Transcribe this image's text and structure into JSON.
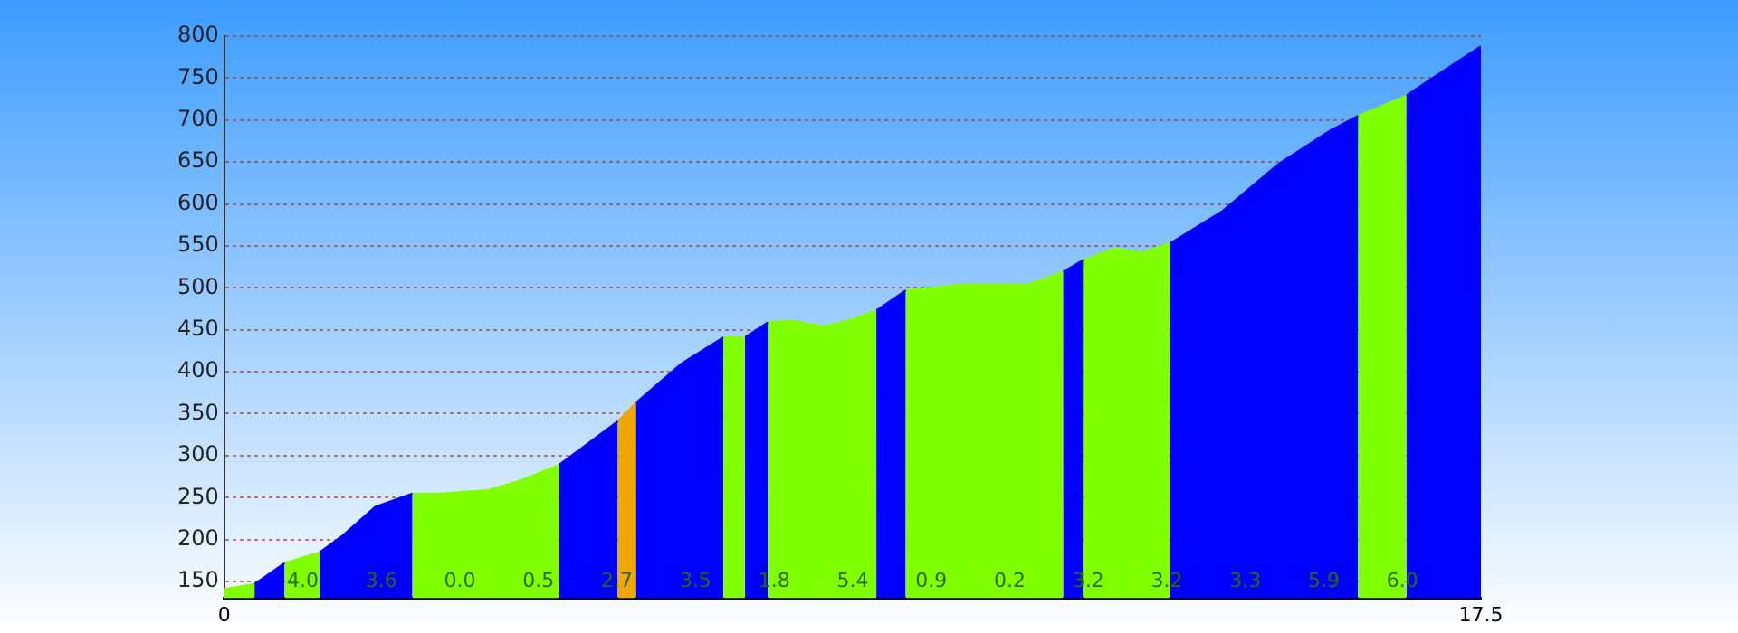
{
  "chart_data": {
    "type": "area",
    "xlim": [
      0,
      17.5
    ],
    "xticks": [
      0,
      17.5
    ],
    "ylim": [
      130,
      800
    ],
    "yticks": [
      150,
      200,
      250,
      300,
      350,
      400,
      450,
      500,
      550,
      600,
      650,
      700,
      750,
      800
    ],
    "grid": "y",
    "legend": false,
    "series": [
      {
        "color": "#80ff00",
        "x": [
          0,
          0.42
        ],
        "values": [
          141,
          147
        ]
      },
      {
        "color": "#0000ff",
        "x": [
          0.42,
          0.84
        ],
        "values": [
          147,
          172
        ]
      },
      {
        "color": "#80ff00",
        "x": [
          0.84,
          1.33
        ],
        "values": [
          172,
          185
        ]
      },
      {
        "color": "#0000ff",
        "x": [
          1.33,
          1.65,
          2.1,
          2.62
        ],
        "values": [
          185,
          205,
          239,
          255
        ]
      },
      {
        "color": "#80ff00",
        "x": [
          2.62,
          3.01,
          3.67,
          4.11,
          4.66
        ],
        "values": [
          255,
          255,
          259,
          270,
          289
        ]
      },
      {
        "color": "#0000ff",
        "x": [
          4.66,
          5.48
        ],
        "values": [
          289,
          341
        ]
      },
      {
        "color": "#f0a800",
        "x": [
          5.48,
          5.73
        ],
        "values": [
          341,
          363
        ]
      },
      {
        "color": "#0000ff",
        "x": [
          5.73,
          6.37,
          6.95
        ],
        "values": [
          363,
          410,
          441
        ]
      },
      {
        "color": "#80ff00",
        "x": [
          6.95,
          7.25
        ],
        "values": [
          441,
          441
        ]
      },
      {
        "color": "#0000ff",
        "x": [
          7.25,
          7.57
        ],
        "values": [
          441,
          459
        ]
      },
      {
        "color": "#80ff00",
        "x": [
          7.57,
          7.9,
          8.34,
          8.69,
          9.08
        ],
        "values": [
          459,
          461,
          454,
          461,
          473
        ]
      },
      {
        "color": "#0000ff",
        "x": [
          9.08,
          9.49
        ],
        "values": [
          473,
          497
        ]
      },
      {
        "color": "#80ff00",
        "x": [
          9.49,
          10.3,
          11.18,
          11.68
        ],
        "values": [
          497,
          504,
          504,
          519
        ]
      },
      {
        "color": "#0000ff",
        "x": [
          11.68,
          11.96
        ],
        "values": [
          519,
          533
        ]
      },
      {
        "color": "#80ff00",
        "x": [
          11.96,
          12.4,
          12.77,
          13.17
        ],
        "values": [
          533,
          547,
          542,
          553
        ]
      },
      {
        "color": "#0000ff",
        "x": [
          13.17,
          13.89,
          14.67,
          15.41,
          15.79
        ],
        "values": [
          553,
          591,
          647,
          688,
          705
        ]
      },
      {
        "color": "#80ff00",
        "x": [
          15.79,
          16.46
        ],
        "values": [
          705,
          729
        ]
      },
      {
        "color": "#0000ff",
        "x": [
          16.46,
          16.77,
          17.5
        ],
        "values": [
          729,
          747,
          788
        ]
      }
    ],
    "annotations": [
      "4.0",
      "3.6",
      "0.0",
      "0.5",
      "2.7",
      "3.5",
      "1.8",
      "5.4",
      "0.9",
      "0.2",
      "3.2",
      "3.2",
      "3.3",
      "5.9",
      "6.0"
    ]
  }
}
